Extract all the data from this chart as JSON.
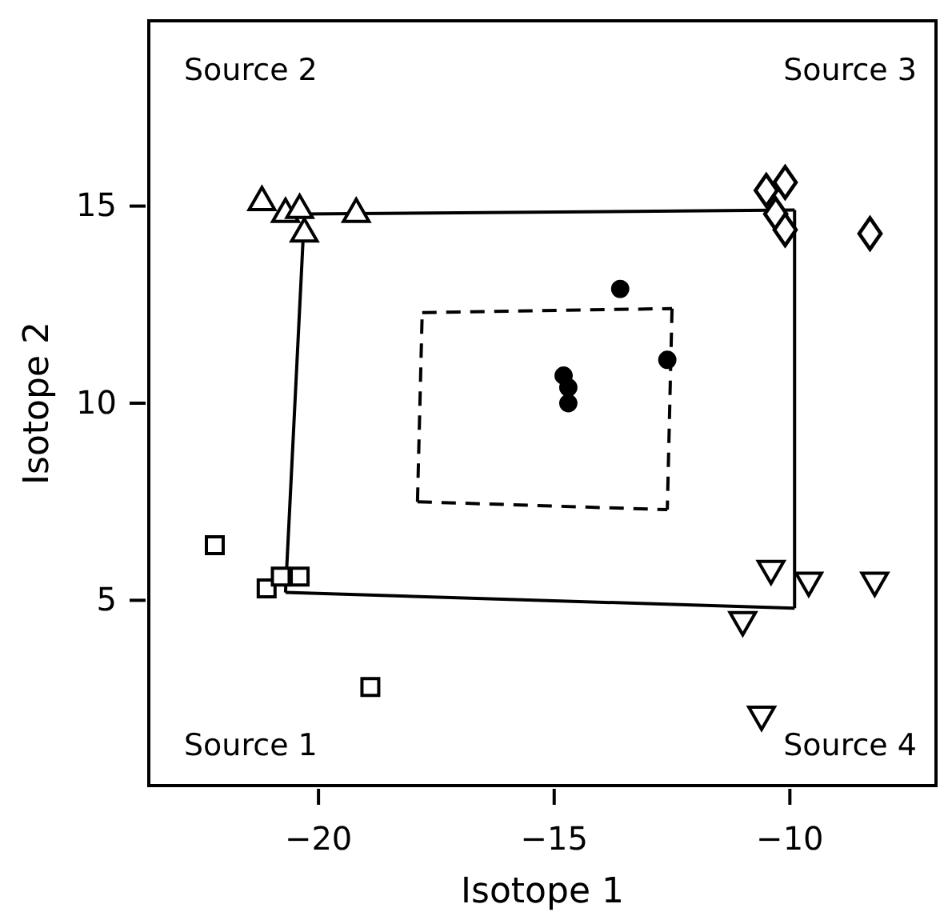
{
  "chart_data": {
    "type": "scatter",
    "xlabel": "Isotope 1",
    "ylabel": "Isotope 2",
    "xlim": [
      -23.6,
      -6.9
    ],
    "ylim": [
      0.3,
      19.7
    ],
    "xticks": [
      -20,
      -15,
      -10
    ],
    "yticks": [
      5,
      10,
      15
    ],
    "grid": false,
    "series": [
      {
        "marker": "square",
        "color": "#000000",
        "x": [
          -22.2,
          -21.1,
          -20.8,
          -20.4,
          -18.9
        ],
        "values": [
          6.4,
          5.3,
          5.6,
          5.6,
          2.8
        ]
      },
      {
        "marker": "triangle",
        "color": "#000000",
        "x": [
          -21.2,
          -20.7,
          -20.4,
          -20.3,
          -19.2
        ],
        "values": [
          15.1,
          14.8,
          14.9,
          14.3,
          14.8
        ]
      },
      {
        "marker": "diamond",
        "color": "#000000",
        "x": [
          -10.5,
          -10.1,
          -10.3,
          -10.1,
          -8.3
        ],
        "values": [
          15.4,
          15.6,
          14.8,
          14.4,
          14.3
        ]
      },
      {
        "marker": "triangle-down",
        "color": "#000000",
        "x": [
          -10.4,
          -9.6,
          -8.2,
          -11.0,
          -10.6
        ],
        "values": [
          5.8,
          5.5,
          5.5,
          4.5,
          2.1
        ]
      },
      {
        "marker": "circle",
        "color": "#000000",
        "x": [
          -13.6,
          -12.6,
          -14.8,
          -14.7,
          -14.7
        ],
        "values": [
          12.9,
          11.1,
          10.7,
          10.4,
          10.0
        ]
      },
      {
        "type": "line",
        "line_style": "solid",
        "marker": "none",
        "color": "#000000",
        "x": [
          -20.3,
          -9.9
        ],
        "values": [
          14.8,
          14.9
        ]
      },
      {
        "type": "line",
        "line_style": "solid",
        "marker": "none",
        "color": "#000000",
        "x": [
          -9.9,
          -9.9
        ],
        "values": [
          14.9,
          4.8
        ]
      },
      {
        "type": "line",
        "line_style": "solid",
        "marker": "none",
        "color": "#000000",
        "x": [
          -20.7,
          -9.9
        ],
        "values": [
          5.2,
          4.8
        ]
      },
      {
        "type": "line",
        "line_style": "solid",
        "marker": "none",
        "color": "#000000",
        "x": [
          -20.7,
          -20.3
        ],
        "values": [
          5.2,
          14.8
        ]
      },
      {
        "type": "line",
        "line_style": "dashed",
        "marker": "none",
        "color": "#000000",
        "x": [
          -17.8,
          -12.5
        ],
        "values": [
          12.3,
          12.4
        ]
      },
      {
        "type": "line",
        "line_style": "dashed",
        "marker": "none",
        "color": "#000000",
        "x": [
          -12.5,
          -12.6
        ],
        "values": [
          12.4,
          7.3
        ]
      },
      {
        "type": "line",
        "line_style": "dashed",
        "marker": "none",
        "color": "#000000",
        "x": [
          -17.9,
          -12.6
        ],
        "values": [
          7.5,
          7.3
        ]
      },
      {
        "type": "line",
        "line_style": "dashed",
        "marker": "none",
        "color": "#000000",
        "x": [
          -17.9,
          -17.8
        ],
        "values": [
          7.5,
          12.3
        ]
      }
    ],
    "annotations": [
      "Source 1",
      "Source 2",
      "Source 3",
      "Source 4"
    ]
  }
}
